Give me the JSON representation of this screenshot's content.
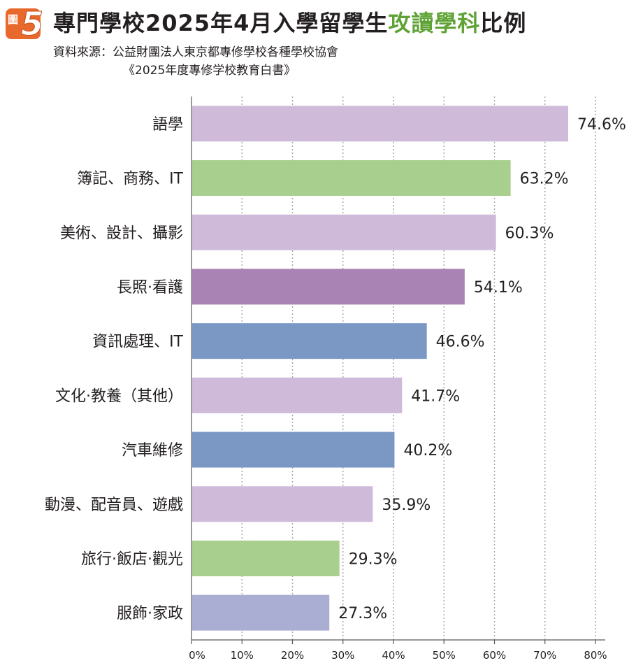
{
  "badge": {
    "word": "圖",
    "number": "5"
  },
  "title": {
    "part1": "專門學校2025年4月入學留學生",
    "highlight": "攻讀學科",
    "part2": "比例"
  },
  "source": {
    "line1": "資料來源：公益財團法人東京都專修學校各種學校協會",
    "line2": "《2025年度專修学校教育白書》"
  },
  "colors": {
    "accent": "#5fa336",
    "badge": "#e8692c",
    "grid": "#a7a9ac"
  },
  "chart_data": {
    "type": "bar",
    "orientation": "horizontal",
    "categories": [
      "語學",
      "簿記、商務、IT",
      "美術、設計、攝影",
      "長照·看護",
      "資訊處理、IT",
      "文化·教養（其他）",
      "汽車維修",
      "動漫、配音員、遊戲",
      "旅行·飯店·觀光",
      "服飾·家政"
    ],
    "values": [
      74.6,
      63.2,
      60.3,
      54.1,
      46.6,
      41.7,
      40.2,
      35.9,
      29.3,
      27.3
    ],
    "value_labels": [
      "74.6%",
      "63.2%",
      "60.3%",
      "54.1%",
      "46.6%",
      "41.7%",
      "40.2%",
      "35.9%",
      "29.3%",
      "27.3%"
    ],
    "bar_colors": [
      "#cfbbd9",
      "#a9cf8f",
      "#cfbbd9",
      "#a883b3",
      "#7b98c5",
      "#cfbbd9",
      "#7b98c5",
      "#cfbbd9",
      "#a9cf8f",
      "#aaaed2"
    ],
    "xlim": [
      0,
      80
    ],
    "xticks": [
      0,
      10,
      20,
      30,
      40,
      50,
      60,
      70,
      80
    ],
    "xtick_labels": [
      "0%",
      "10%",
      "20%",
      "30%",
      "40%",
      "50%",
      "60%",
      "70%",
      "80%"
    ],
    "grid": "vertical-dotted",
    "legend": "none"
  }
}
